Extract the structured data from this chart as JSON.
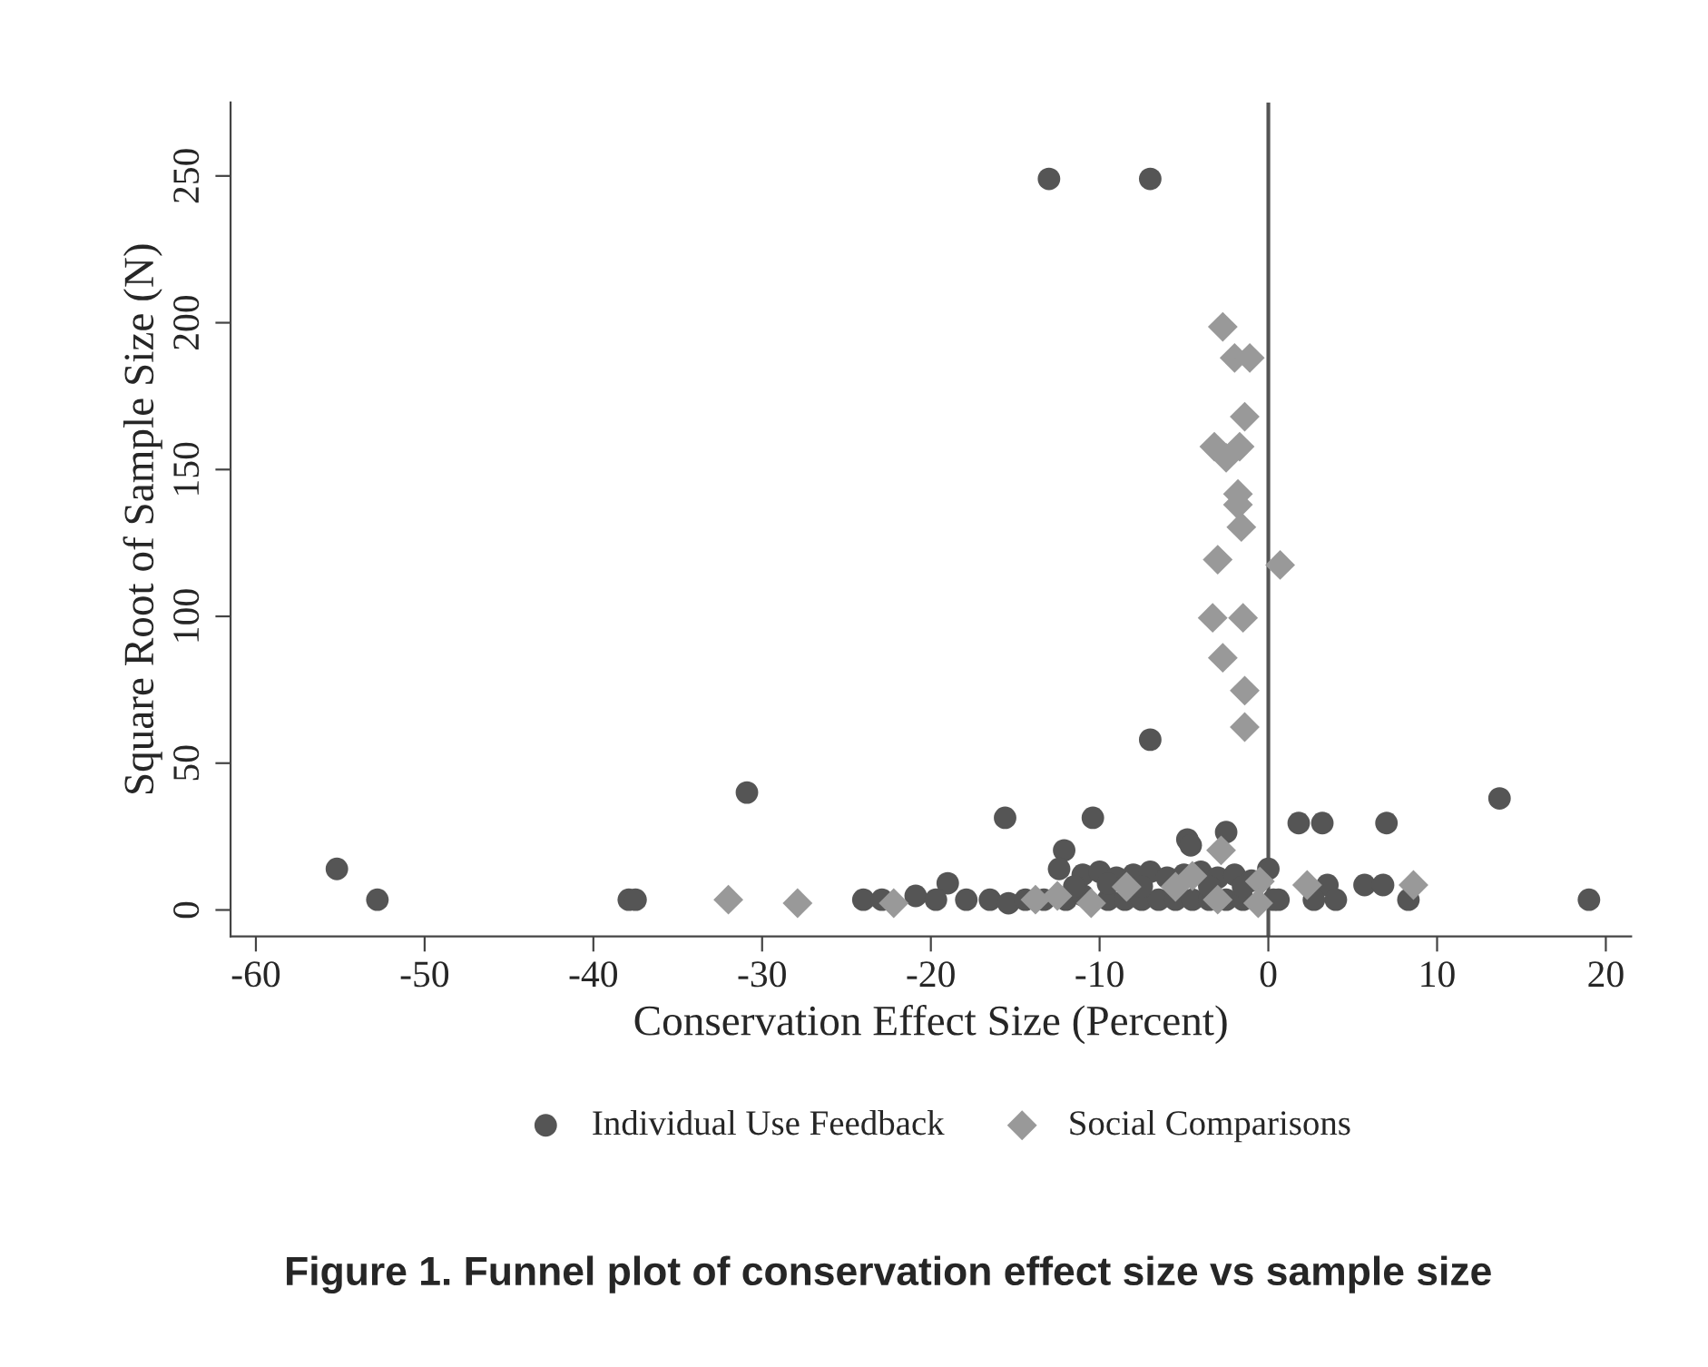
{
  "chart_data": {
    "type": "scatter",
    "title": "Figure 1. Funnel plot of conservation effect size vs sample size",
    "xlabel": "Conservation Effect Size (Percent)",
    "ylabel": "Square Root of Sample Size (N)",
    "xlim": [
      -61.5,
      21.5
    ],
    "ylim": [
      -9,
      275
    ],
    "xticks": [
      -60,
      -50,
      -40,
      -30,
      -20,
      -10,
      0,
      10,
      20
    ],
    "yticks": [
      0,
      50,
      100,
      150,
      200,
      250
    ],
    "ref_lines": [
      {
        "axis": "x",
        "value": 0,
        "color": "#555555"
      }
    ],
    "grid": false,
    "legend": "bottom",
    "series": [
      {
        "name": "Individual Use Feedback",
        "color": "#555555",
        "marker": "circle",
        "x": [
          -13,
          -7,
          -7,
          -30.9,
          13.7,
          -15.6,
          -10.4,
          -2.5,
          -4.8,
          -4.6,
          -12.1,
          -12.4,
          -19,
          1.8,
          3.2,
          7,
          0,
          5.7,
          6.8,
          3.5,
          4,
          8.3,
          2.7,
          0.6,
          -55.2,
          -52.8,
          -37.9,
          -37.5,
          19,
          -24,
          -22.9,
          -20.9,
          -19.7,
          -17.9,
          -16.5,
          -15.4,
          -14.4,
          -13.3,
          -12,
          -11,
          -9.5,
          -8.5,
          -7.5,
          -6.5,
          -5.5,
          -4.5,
          -3.5,
          -2.5,
          -1.5,
          0.3,
          -11,
          -10,
          -9,
          -8,
          -7,
          -6,
          -5,
          -4,
          -3,
          -2,
          -1,
          -11.5,
          -9.5,
          -7.5,
          -3.5,
          -1.5
        ],
        "values": [
          249,
          249,
          58,
          40,
          38,
          31.4,
          31.4,
          26.5,
          24,
          22,
          20.3,
          14,
          9.1,
          29.6,
          29.6,
          29.6,
          14,
          8.5,
          8.5,
          8.5,
          3.5,
          3.5,
          3.5,
          3.5,
          14,
          3.5,
          3.5,
          3.5,
          3.5,
          3.5,
          3.5,
          4.8,
          3.5,
          3.5,
          3.5,
          2.3,
          3.5,
          3.5,
          3.5,
          5,
          3.5,
          3.5,
          3.5,
          3.5,
          3.5,
          3.5,
          3.5,
          3.5,
          3.5,
          3.5,
          12,
          13,
          11,
          12,
          13,
          11,
          12,
          13,
          11,
          12,
          10,
          8,
          9,
          8,
          8,
          8
        ]
      },
      {
        "name": "Social Comparisons",
        "color": "#999999",
        "marker": "diamond",
        "x": [
          -32,
          -27.9,
          -22.2,
          -13.8,
          -12.5,
          -10.5,
          -8.4,
          -5.5,
          -4.5,
          -2.8,
          -3,
          -0.5,
          -0.6,
          2.3,
          8.6,
          -2.7,
          -2,
          -1.1,
          -1.4,
          -3.2,
          -1.7,
          -2.5,
          -1.8,
          -1.8,
          -1.6,
          -3,
          0.7,
          -3.3,
          -1.5,
          -2.7,
          -1.4,
          -1.4
        ],
        "values": [
          3.5,
          2.3,
          2.3,
          3.5,
          4.8,
          2.3,
          7.9,
          7.9,
          11.6,
          20.3,
          3.5,
          9.7,
          2.3,
          8.5,
          8.5,
          198.6,
          188,
          188,
          168,
          157.8,
          157.8,
          154,
          141.7,
          138,
          130.4,
          119.3,
          117.5,
          99.5,
          99.5,
          85.9,
          74.7,
          62.3
        ]
      }
    ]
  }
}
